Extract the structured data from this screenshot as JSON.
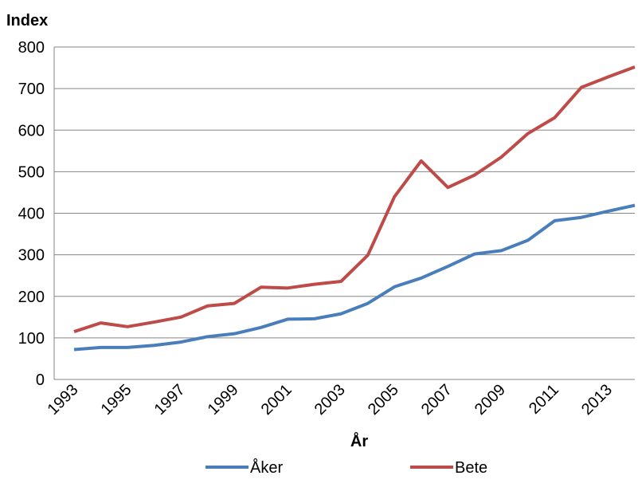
{
  "chart_data": {
    "type": "line",
    "y_axis_title": "Index",
    "x_axis_title": "År",
    "categories": [
      "1993",
      null,
      "1995",
      null,
      "1997",
      null,
      "1999",
      null,
      "2001",
      null,
      "2003",
      null,
      "2005",
      null,
      "2007",
      null,
      "2009",
      null,
      "2011",
      null,
      "2013",
      null
    ],
    "series": [
      {
        "name": "Åker",
        "color": "#4a7ebb",
        "values": [
          72,
          77,
          77,
          82,
          90,
          103,
          110,
          125,
          145,
          146,
          158,
          183,
          223,
          244,
          272,
          302,
          310,
          335,
          382,
          390,
          405,
          419
        ]
      },
      {
        "name": "Bete",
        "color": "#be4b48",
        "values": [
          115,
          136,
          127,
          138,
          150,
          177,
          183,
          222,
          220,
          229,
          236,
          299,
          440,
          526,
          462,
          492,
          535,
          592,
          630,
          703,
          728,
          752
        ]
      }
    ],
    "ylim": [
      0,
      800
    ],
    "yticks": [
      0,
      100,
      200,
      300,
      400,
      500,
      600,
      700,
      800
    ],
    "grid": true
  }
}
